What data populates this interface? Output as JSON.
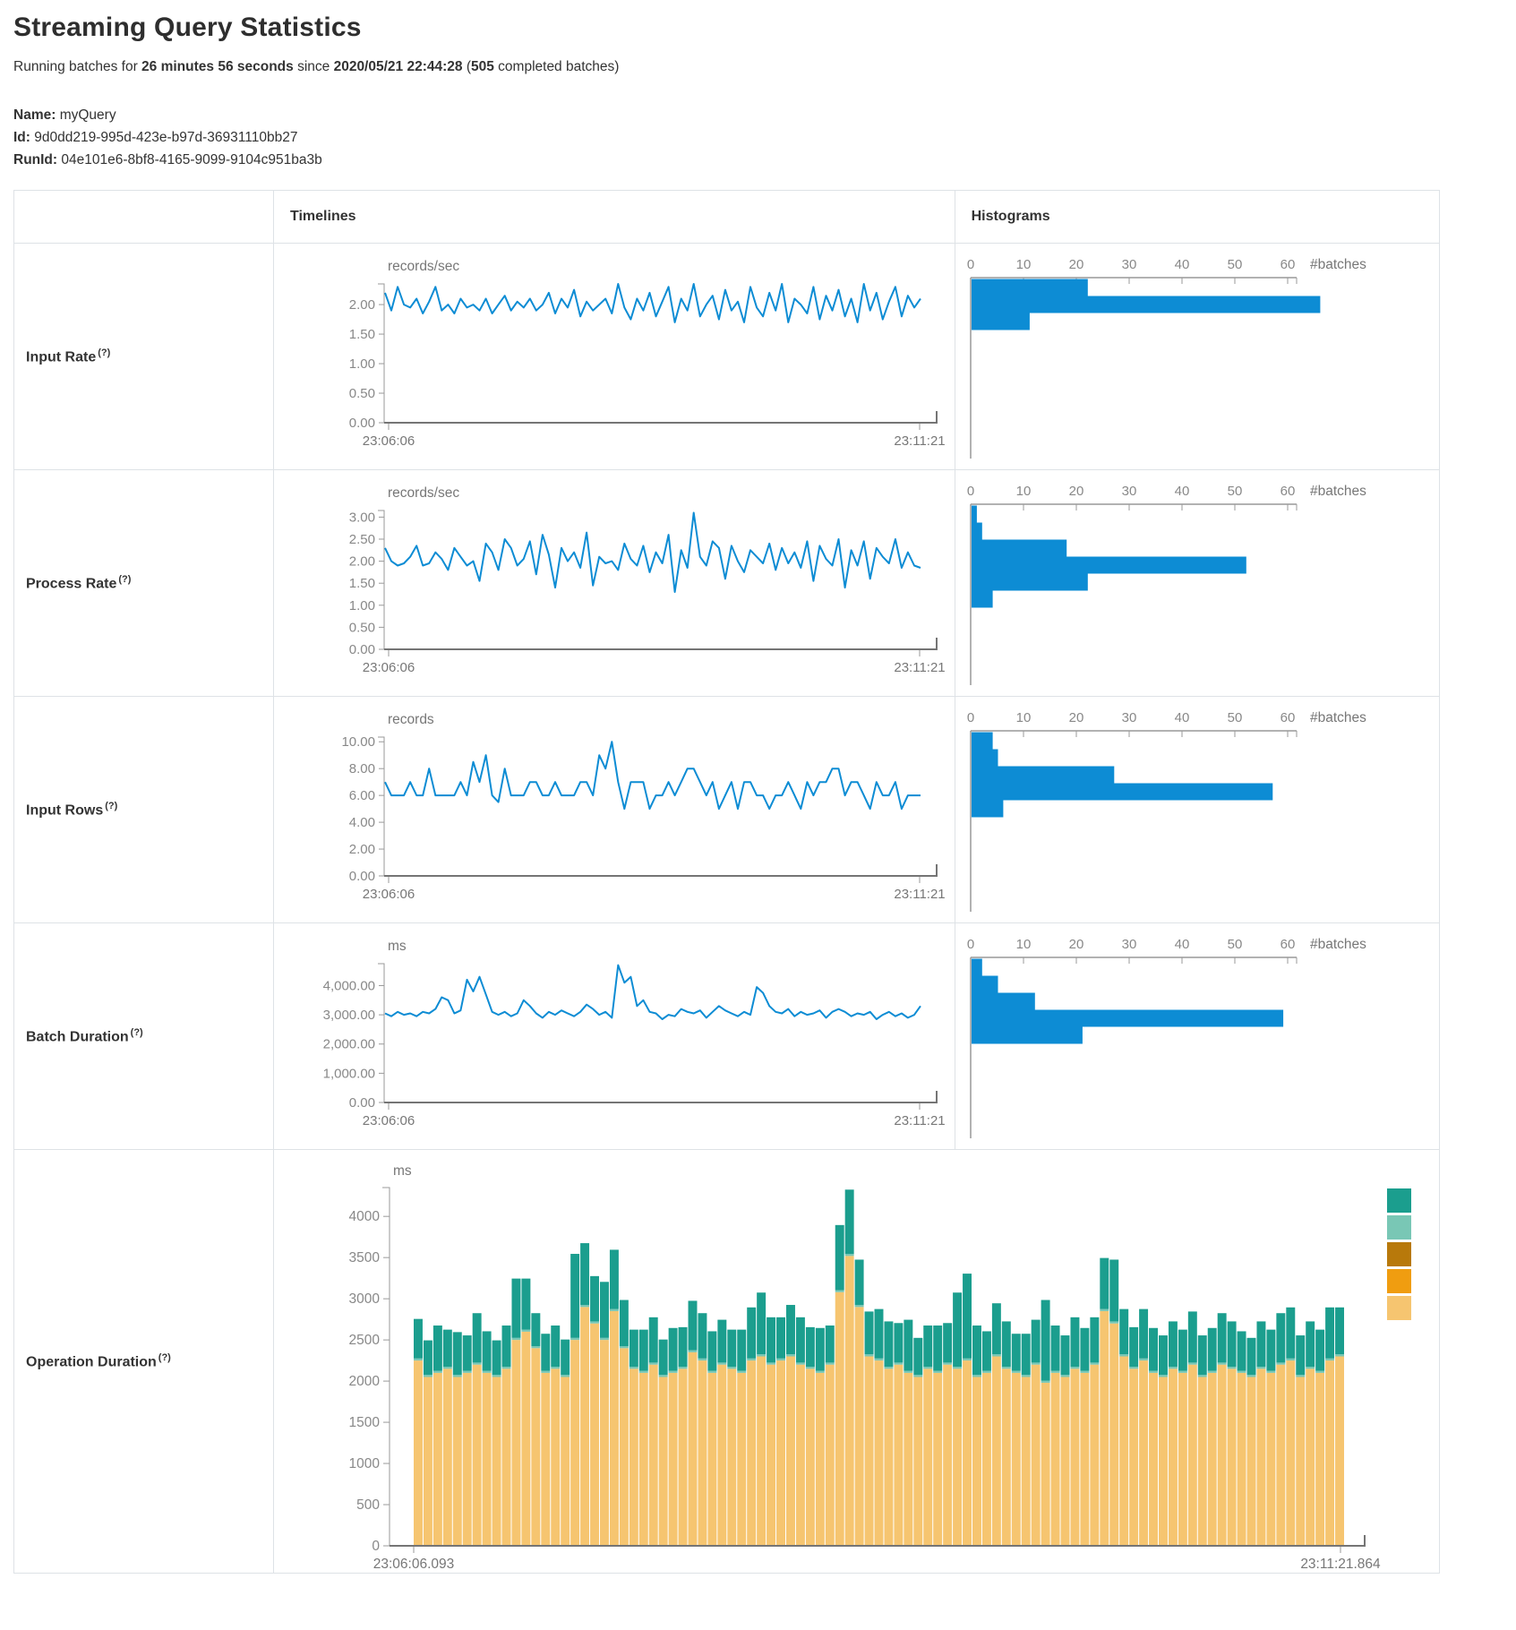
{
  "page": {
    "title": "Streaming Query Statistics"
  },
  "subtitle": {
    "prefix": "Running batches for ",
    "duration": "26 minutes 56 seconds",
    "middle": " since ",
    "start_time": "2020/05/21 22:44:28",
    "open_paren": " (",
    "batches": "505",
    "suffix": " completed batches)"
  },
  "query_info": {
    "name_label": "Name:",
    "name": "myQuery",
    "id_label": "Id:",
    "id": "9d0dd219-995d-423e-b97d-36931110bb27",
    "runid_label": "RunId:",
    "runid": "04e101e6-8bf8-4165-9099-9104c951ba3b"
  },
  "table": {
    "headers": {
      "timelines": "Timelines",
      "histograms": "Histograms"
    },
    "rows": [
      {
        "label": "Input Rate",
        "help": "(?)"
      },
      {
        "label": "Process Rate",
        "help": "(?)"
      },
      {
        "label": "Input Rows",
        "help": "(?)"
      },
      {
        "label": "Batch Duration",
        "help": "(?)"
      },
      {
        "label": "Operation Duration",
        "help": "(?)"
      }
    ]
  },
  "colors": {
    "blue": "#0d8cd4",
    "teal": "#1b9e8e",
    "light_teal": "#79c7b5",
    "dark_ochre": "#b8790b",
    "orange": "#f09d10",
    "tan": "#f6c570",
    "axis": "#999999",
    "axis_strong": "#757575",
    "text_gray": "#777777"
  },
  "chart_data": [
    {
      "row": "Input Rate",
      "timeline": {
        "type": "line",
        "unit": "records/sec",
        "x_start": "23:06:06",
        "x_end": "23:11:21",
        "ylim": [
          0,
          2.35
        ],
        "yticks": [
          0,
          0.5,
          1,
          1.5,
          2
        ],
        "decimals": 2,
        "values": [
          2.2,
          1.9,
          2.3,
          2.0,
          1.95,
          2.1,
          1.85,
          2.05,
          2.3,
          1.9,
          2.0,
          1.85,
          2.1,
          1.95,
          2.0,
          1.9,
          2.1,
          1.85,
          2.0,
          2.15,
          1.9,
          2.05,
          1.95,
          2.1,
          1.9,
          2.0,
          2.2,
          1.85,
          2.1,
          1.95,
          2.25,
          1.8,
          2.05,
          1.9,
          2.0,
          2.1,
          1.85,
          2.35,
          1.95,
          1.75,
          2.1,
          1.9,
          2.2,
          1.8,
          2.05,
          2.3,
          1.7,
          2.1,
          1.9,
          2.35,
          1.8,
          2.0,
          2.15,
          1.75,
          2.25,
          1.9,
          2.05,
          1.7,
          2.3,
          1.95,
          1.8,
          2.2,
          1.9,
          2.35,
          1.7,
          2.1,
          2.0,
          1.85,
          2.3,
          1.75,
          2.15,
          1.9,
          2.25,
          1.8,
          2.1,
          1.7,
          2.35,
          1.9,
          2.2,
          1.75,
          2.05,
          2.3,
          1.8,
          2.15,
          1.95,
          2.1
        ]
      },
      "histogram": {
        "type": "bar",
        "orientation": "horizontal",
        "xlabel": "#batches",
        "xticks": [
          0,
          10,
          20,
          30,
          40,
          50,
          60
        ],
        "xlim": [
          0,
          67
        ],
        "values": [
          22,
          66,
          11
        ]
      }
    },
    {
      "row": "Process Rate",
      "timeline": {
        "type": "line",
        "unit": "records/sec",
        "x_start": "23:06:06",
        "x_end": "23:11:21",
        "ylim": [
          0,
          3.15
        ],
        "yticks": [
          0,
          0.5,
          1,
          1.5,
          2,
          2.5,
          3
        ],
        "decimals": 2,
        "values": [
          2.3,
          2.0,
          1.9,
          1.95,
          2.1,
          2.35,
          1.9,
          1.95,
          2.2,
          2.05,
          1.8,
          2.3,
          2.1,
          1.9,
          2.0,
          1.55,
          2.4,
          2.2,
          1.8,
          2.5,
          2.3,
          1.9,
          2.05,
          2.45,
          1.7,
          2.6,
          2.15,
          1.4,
          2.3,
          2.0,
          2.2,
          1.85,
          2.65,
          1.45,
          2.1,
          1.95,
          2.0,
          1.8,
          2.4,
          2.05,
          1.9,
          2.35,
          1.75,
          2.2,
          1.95,
          2.6,
          1.3,
          2.25,
          1.85,
          3.1,
          2.1,
          1.9,
          2.45,
          2.3,
          1.6,
          2.35,
          2.0,
          1.75,
          2.25,
          2.1,
          1.95,
          2.4,
          1.8,
          2.3,
          1.95,
          2.2,
          1.85,
          2.45,
          1.55,
          2.35,
          2.05,
          1.9,
          2.5,
          1.4,
          2.25,
          1.9,
          2.45,
          1.6,
          2.3,
          2.1,
          1.95,
          2.5,
          1.85,
          2.2,
          1.9,
          1.85
        ]
      },
      "histogram": {
        "type": "bar",
        "orientation": "horizontal",
        "xlabel": "#batches",
        "xticks": [
          0,
          10,
          20,
          30,
          40,
          50,
          60
        ],
        "xlim": [
          0,
          67
        ],
        "values": [
          1,
          2,
          18,
          52,
          22,
          4
        ]
      }
    },
    {
      "row": "Input Rows",
      "timeline": {
        "type": "line",
        "unit": "records",
        "x_start": "23:06:06",
        "x_end": "23:11:21",
        "ylim": [
          0,
          10.35
        ],
        "yticks": [
          0,
          2,
          4,
          6,
          8,
          10
        ],
        "decimals": 2,
        "values": [
          7,
          6,
          6,
          6,
          7,
          6,
          6,
          8,
          6,
          6,
          6,
          6,
          7,
          6,
          8.5,
          7,
          9,
          6,
          5.5,
          8,
          6,
          6,
          6,
          7,
          7,
          6,
          6,
          7,
          6,
          6,
          6,
          7,
          7,
          6,
          9,
          8,
          10,
          7,
          5,
          7,
          7,
          7,
          5,
          6,
          6,
          7,
          6,
          7,
          8,
          8,
          7,
          6,
          7,
          5,
          6,
          7,
          5,
          7,
          7,
          6,
          6,
          5,
          6,
          6,
          7,
          6,
          5,
          7,
          6,
          7,
          7,
          8,
          8,
          6,
          7,
          7,
          6,
          5,
          7,
          6,
          6,
          7,
          5,
          6,
          6,
          6
        ]
      },
      "histogram": {
        "type": "bar",
        "orientation": "horizontal",
        "xlabel": "#batches",
        "xticks": [
          0,
          10,
          20,
          30,
          40,
          50,
          60
        ],
        "xlim": [
          0,
          67
        ],
        "values": [
          4,
          5,
          27,
          57,
          6
        ]
      }
    },
    {
      "row": "Batch Duration",
      "timeline": {
        "type": "line",
        "unit": "ms",
        "x_start": "23:06:06",
        "x_end": "23:11:21",
        "ylim": [
          0,
          4750
        ],
        "yticks": [
          0,
          1000,
          2000,
          3000,
          4000
        ],
        "decimals": 2,
        "values": [
          3050,
          2950,
          3100,
          3000,
          3050,
          2950,
          3100,
          3050,
          3200,
          3600,
          3500,
          3050,
          3150,
          4200,
          3800,
          4300,
          3700,
          3100,
          3000,
          3100,
          2950,
          3050,
          3500,
          3300,
          3050,
          2900,
          3100,
          3000,
          3150,
          3050,
          2950,
          3100,
          3350,
          3200,
          3000,
          3100,
          2900,
          4700,
          4100,
          4300,
          3300,
          3500,
          3100,
          3050,
          2850,
          3000,
          2950,
          3200,
          3100,
          3050,
          3150,
          2900,
          3100,
          3300,
          3150,
          3050,
          2950,
          3100,
          3000,
          3950,
          3750,
          3300,
          3100,
          3050,
          3200,
          2950,
          3100,
          3000,
          3050,
          3150,
          2900,
          3100,
          3200,
          3100,
          2950,
          3050,
          3000,
          3100,
          2850,
          3000,
          3100,
          2950,
          3050,
          2900,
          3000,
          3300
        ]
      },
      "histogram": {
        "type": "bar",
        "orientation": "horizontal",
        "xlabel": "#batches",
        "xticks": [
          0,
          10,
          20,
          30,
          40,
          50,
          60
        ],
        "xlim": [
          0,
          67
        ],
        "values": [
          2,
          5,
          12,
          59,
          21
        ]
      }
    },
    {
      "row": "Operation Duration",
      "timeline": {
        "type": "stacked-bar",
        "unit": "ms",
        "x_start": "23:06:06.093",
        "x_end": "23:11:21.864",
        "ylim": [
          0,
          4350
        ],
        "yticks": [
          0,
          500,
          1000,
          1500,
          2000,
          2500,
          3000,
          3500,
          4000
        ],
        "decimals": 0,
        "light_band": 25,
        "series": [
          {
            "name": "base",
            "color": "#f6c570",
            "values": [
              2250,
              2050,
              2100,
              2150,
              2050,
              2100,
              2200,
              2100,
              2050,
              2150,
              2500,
              2600,
              2400,
              2100,
              2150,
              2050,
              2500,
              2900,
              2700,
              2500,
              2850,
              2400,
              2150,
              2100,
              2200,
              2050,
              2100,
              2150,
              2350,
              2250,
              2100,
              2200,
              2150,
              2100,
              2250,
              2300,
              2200,
              2250,
              2300,
              2200,
              2150,
              2100,
              2200,
              3080,
              3520,
              2900,
              2300,
              2250,
              2150,
              2200,
              2100,
              2050,
              2150,
              2100,
              2200,
              2150,
              2250,
              2050,
              2100,
              2300,
              2150,
              2100,
              2050,
              2200,
              1980,
              2100,
              2050,
              2150,
              2100,
              2200,
              2850,
              2700,
              2300,
              2150,
              2250,
              2100,
              2050,
              2150,
              2100,
              2200,
              2050,
              2100,
              2200,
              2150,
              2100,
              2050,
              2150,
              2100,
              2200,
              2250,
              2050,
              2150,
              2100,
              2250,
              2300
            ]
          },
          {
            "name": "top",
            "color": "#1b9e8e",
            "values": [
              480,
              420,
              550,
              450,
              520,
              430,
              600,
              480,
              420,
              500,
              720,
              620,
              400,
              450,
              500,
              430,
              1020,
              750,
              550,
              680,
              720,
              560,
              450,
              500,
              550,
              430,
              520,
              480,
              600,
              550,
              480,
              520,
              450,
              500,
              620,
              750,
              550,
              500,
              600,
              550,
              480,
              520,
              450,
              790,
              780,
              550,
              520,
              600,
              550,
              480,
              620,
              450,
              500,
              550,
              480,
              900,
              1030,
              600,
              480,
              620,
              550,
              450,
              500,
              520,
              980,
              550,
              480,
              600,
              520,
              550,
              620,
              750,
              550,
              480,
              600,
              520,
              480,
              550,
              500,
              620,
              480,
              520,
              600,
              550,
              480,
              450,
              550,
              500,
              600,
              620,
              480,
              550,
              500,
              620,
              570
            ]
          }
        ],
        "legend_colors": [
          "#1b9e8e",
          "#79c7b5",
          "#b8790b",
          "#f09d10",
          "#f6c570"
        ]
      }
    }
  ]
}
